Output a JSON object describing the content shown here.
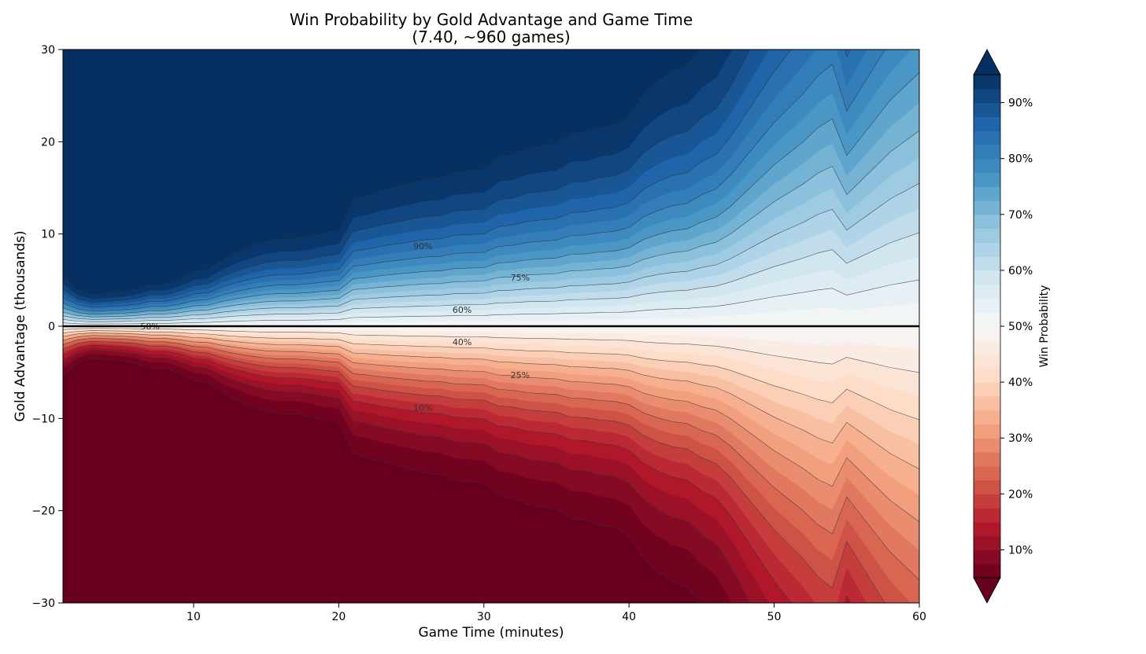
{
  "chart_data": {
    "type": "contour",
    "title": "Win Probability by Gold Advantage and Game Time",
    "subtitle": "(7.40, ~960 games)",
    "xlabel": "Game Time (minutes)",
    "ylabel": "Gold Advantage (thousands)",
    "xlim": [
      1,
      60
    ],
    "ylim": [
      -30,
      30
    ],
    "xticks": [
      10,
      20,
      30,
      40,
      50,
      60
    ],
    "yticks": [
      -30,
      -20,
      -10,
      0,
      10,
      20,
      30
    ],
    "colorbar": {
      "label": "Win Probability",
      "range": [
        0.05,
        0.95
      ],
      "ticks": [
        "10%",
        "20%",
        "30%",
        "40%",
        "50%",
        "60%",
        "70%",
        "80%",
        "90%"
      ],
      "tick_values": [
        0.1,
        0.2,
        0.3,
        0.4,
        0.5,
        0.6,
        0.7,
        0.8,
        0.9
      ],
      "extend": "both",
      "colormap": "RdBu",
      "color_low": "#67001f",
      "color_high": "#053061"
    },
    "contour_labels": [
      {
        "text": "90%",
        "x": 25.8,
        "y": 8.7
      },
      {
        "text": "75%",
        "x": 32.5,
        "y": 5.3
      },
      {
        "text": "60%",
        "x": 28.5,
        "y": 1.8
      },
      {
        "text": "50%",
        "x": 7.0,
        "y": 0.0
      },
      {
        "text": "40%",
        "x": 28.5,
        "y": -1.7
      },
      {
        "text": "25%",
        "x": 32.5,
        "y": -5.3
      },
      {
        "text": "10%",
        "x": 25.8,
        "y": -8.8
      }
    ],
    "times": [
      1,
      2,
      3,
      4,
      5,
      6,
      7,
      8,
      9,
      10,
      11,
      12,
      13,
      14,
      15,
      16,
      17,
      18,
      19,
      20,
      21,
      22,
      23,
      24,
      25,
      26,
      27,
      28,
      29,
      30,
      31,
      32,
      33,
      34,
      35,
      36,
      37,
      38,
      39,
      40,
      41,
      42,
      43,
      44,
      45,
      46,
      47,
      48,
      49,
      50,
      51,
      52,
      53,
      54,
      55,
      56,
      57,
      58,
      59,
      60
    ],
    "gold_scale_10pct": [
      4.0,
      3.0,
      2.6,
      2.7,
      2.8,
      3.0,
      3.4,
      3.4,
      3.8,
      4.4,
      4.6,
      5.4,
      6.0,
      6.5,
      6.9,
      7.1,
      7.1,
      7.3,
      7.6,
      7.8,
      10.3,
      10.6,
      11.0,
      11.3,
      11.6,
      11.9,
      12.0,
      12.5,
      12.6,
      12.7,
      13.7,
      13.9,
      14.4,
      14.6,
      14.8,
      15.6,
      15.7,
      16.1,
      16.3,
      17.0,
      18.8,
      19.9,
      20.7,
      21.1,
      22.6,
      23.6,
      26.0,
      29.0,
      32.0,
      35.0,
      37.5,
      40.0,
      43.0,
      45.0,
      37.0,
      41.0,
      45.0,
      49.0,
      52.0,
      55.0
    ]
  }
}
